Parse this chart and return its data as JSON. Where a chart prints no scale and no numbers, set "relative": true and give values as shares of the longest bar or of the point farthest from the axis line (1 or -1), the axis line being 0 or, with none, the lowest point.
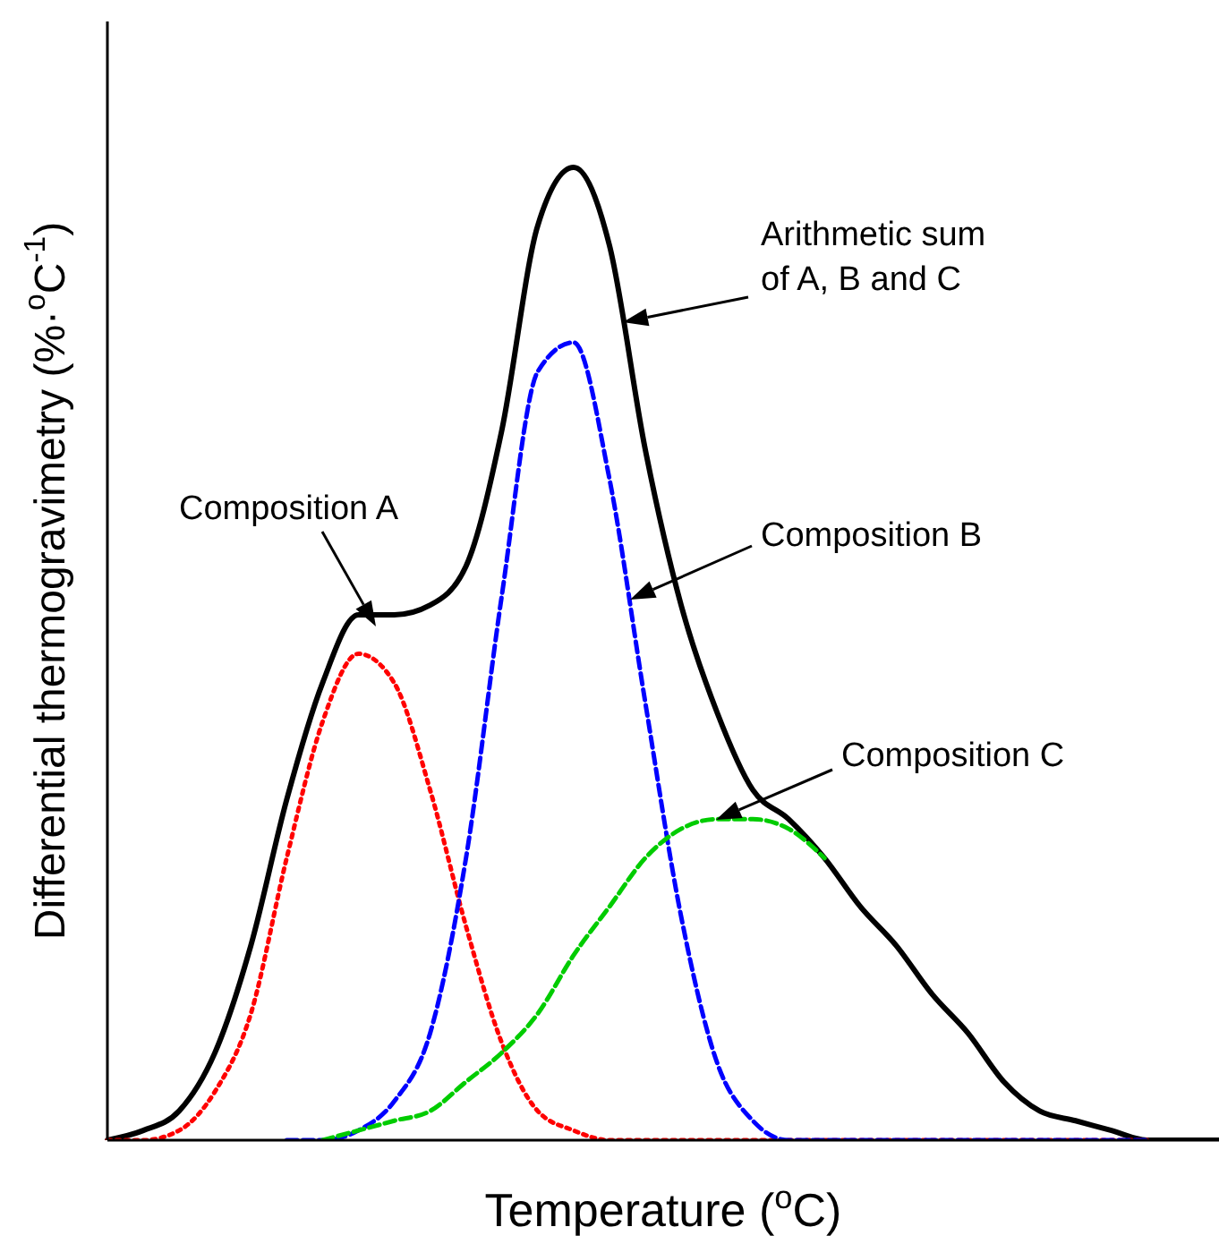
{
  "chart_data": {
    "type": "line",
    "relative": true,
    "xlabel": "Temperature ($^{o}$C)",
    "ylabel": "Differential thermogravimetry (%·$^{o}$C$^{-1}$)",
    "annotations": [
      "Arithmetic sum of A, B and C",
      "Composition A",
      "Composition B",
      "Composition C"
    ],
    "categories": [
      null,
      null,
      null,
      null,
      null,
      null,
      null,
      null,
      null,
      null,
      null,
      null,
      null,
      null,
      null,
      null,
      null,
      null,
      null,
      null,
      null,
      null,
      null,
      null,
      null,
      null,
      null,
      null,
      null,
      null,
      null,
      null
    ],
    "series": [
      {
        "color": "#000000",
        "line_style": "solid",
        "values": [
          0,
          0.01,
          0.03,
          0.09,
          0.2,
          0.35,
          0.47,
          0.54,
          0.54,
          0.55,
          0.59,
          0.73,
          0.94,
          1,
          0.92,
          0.71,
          0.55,
          0.44,
          0.36,
          0.33,
          0.29,
          0.24,
          0.2,
          0.15,
          0.11,
          0.06,
          0.03,
          0.02,
          0.01,
          0,
          0,
          0
        ]
      },
      {
        "color": "#ff0000",
        "line_style": "dotted",
        "values": [
          0,
          0,
          0.01,
          0.05,
          0.13,
          0.29,
          0.43,
          0.5,
          0.47,
          0.36,
          0.22,
          0.1,
          0.03,
          0.01,
          0,
          0,
          0,
          0,
          0,
          0,
          0,
          0,
          0,
          0,
          0,
          0,
          0,
          0,
          0,
          0,
          null,
          null
        ]
      },
      {
        "color": "#0000ff",
        "line_style": "dashed",
        "values": [
          null,
          null,
          null,
          null,
          null,
          0,
          0,
          0.01,
          0.04,
          0.11,
          0.29,
          0.56,
          0.79,
          0.82,
          0.68,
          0.45,
          0.23,
          0.08,
          0.02,
          0,
          0,
          0,
          0,
          0,
          0,
          0,
          0,
          0,
          0,
          0,
          null,
          null
        ]
      },
      {
        "color": "#00cc00",
        "line_style": "dashed",
        "values": [
          null,
          null,
          null,
          null,
          null,
          null,
          0,
          0.01,
          0.02,
          0.03,
          0.06,
          0.09,
          0.13,
          0.19,
          0.24,
          0.29,
          0.32,
          0.33,
          0.33,
          0.32,
          0.29,
          null,
          null,
          null,
          null,
          null,
          null,
          null,
          null,
          null,
          null,
          null
        ]
      }
    ]
  }
}
